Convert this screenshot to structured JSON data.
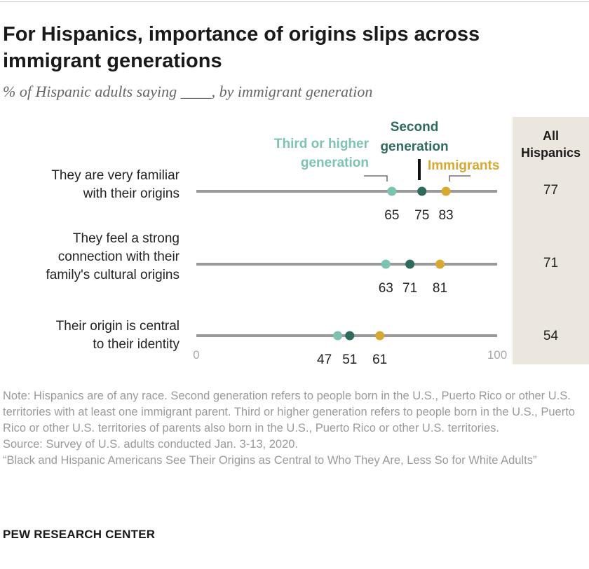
{
  "header": {
    "title": "For Hispanics, importance of origins slips across immigrant generations",
    "subtitle": "% of Hispanic adults saying ____, by immigrant generation"
  },
  "chart_data": {
    "type": "dot",
    "xlim": [
      0,
      100
    ],
    "x_ticks": [
      "0",
      "100"
    ],
    "series": [
      {
        "name": "Third or higher generation",
        "label_lines": [
          "Third or higher",
          "generation"
        ],
        "color": "#7dc3b1",
        "values": [
          65,
          63,
          47
        ]
      },
      {
        "name": "Second generation",
        "label_lines": [
          "Second",
          "generation"
        ],
        "color": "#2e6b5c",
        "values": [
          75,
          71,
          51
        ]
      },
      {
        "name": "Immigrants",
        "label_lines": [
          "Immigrants"
        ],
        "color": "#d7a832",
        "values": [
          83,
          81,
          61
        ]
      }
    ],
    "categories": [
      {
        "label_lines": [
          "They are very familiar",
          "with their origins"
        ],
        "all_hispanics": "77"
      },
      {
        "label_lines": [
          "They feel a strong",
          "connection with their",
          "family's cultural origins"
        ],
        "all_hispanics": "71"
      },
      {
        "label_lines": [
          "Their origin is central",
          "to their identity"
        ],
        "all_hispanics": "54"
      }
    ],
    "all_column_header": [
      "All",
      "Hispanics"
    ],
    "colors": {
      "axis_line": "#9a9a9a",
      "column_bg": "#ece7de"
    }
  },
  "notes": [
    "Note: Hispanics are of any race. Second generation refers to people born in the U.S., Puerto Rico or other U.S. territories with at least one immigrant parent. Third or higher generation refers to people born in the U.S., Puerto Rico or other U.S. territories of parents also born in the U.S., Puerto Rico or other U.S. territories.",
    "Source: Survey of U.S. adults conducted Jan. 3-13, 2020.",
    "“Black and Hispanic Americans See Their Origins as Central to Who They Are, Less So for White Adults”"
  ],
  "brand": "PEW RESEARCH CENTER"
}
